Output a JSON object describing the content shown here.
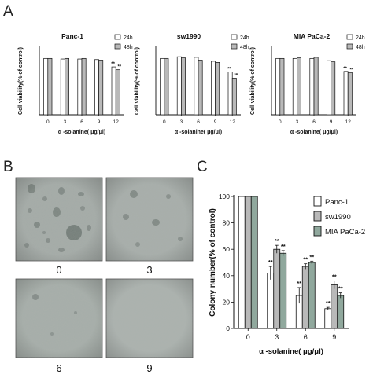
{
  "panel_letters": {
    "a": "A",
    "b": "B",
    "c": "C"
  },
  "colors": {
    "white_bar": "#ffffff",
    "gray_bar": "#b9b9b9",
    "teal_bar": "#90a89d",
    "stroke": "#111111",
    "photo_bg": "#a3aaa6"
  },
  "photos": {
    "labels": [
      "0",
      "3",
      "6",
      "9"
    ]
  },
  "chart_data": [
    {
      "type": "bar",
      "title": "Panc-1",
      "xlabel": "α -solanine( μg/μl)",
      "ylabel": "Cell viability(% of control)",
      "categories": [
        "0",
        "3",
        "6",
        "9",
        "12"
      ],
      "ylim": [
        0,
        120
      ],
      "yticks": [
        "0",
        "20",
        "40",
        "60",
        "80",
        "100",
        "120"
      ],
      "series": [
        {
          "name": "24h",
          "values": [
            100,
            99,
            99,
            98,
            85
          ],
          "color": "#ffffff"
        },
        {
          "name": "48h",
          "values": [
            100,
            100,
            100,
            97,
            80
          ],
          "color": "#b9b9b9"
        }
      ],
      "annotations": [
        {
          "category": "12",
          "text": "**",
          "series": 0
        },
        {
          "category": "12",
          "text": "**",
          "series": 1
        }
      ],
      "legend": "top-right"
    },
    {
      "type": "bar",
      "title": "sw1990",
      "xlabel": "α -solanine( μg/μl)",
      "ylabel": "Cell viability(% of control)",
      "categories": [
        "0",
        "3",
        "6",
        "9",
        "12"
      ],
      "ylim": [
        0,
        120
      ],
      "yticks": [
        "0",
        "20",
        "40",
        "60",
        "80",
        "100",
        "120"
      ],
      "series": [
        {
          "name": "24h",
          "values": [
            100,
            103,
            102,
            95,
            76
          ],
          "color": "#ffffff"
        },
        {
          "name": "48h",
          "values": [
            100,
            101,
            97,
            93,
            65
          ],
          "color": "#b9b9b9"
        }
      ],
      "annotations": [
        {
          "category": "12",
          "text": "**",
          "series": 0
        },
        {
          "category": "12",
          "text": "**",
          "series": 1
        }
      ],
      "legend": "top-right"
    },
    {
      "type": "bar",
      "title": "MIA PaCa-2",
      "xlabel": "α -solanine( μg/μl)",
      "ylabel": "Cell viability(% of control)",
      "categories": [
        "0",
        "3",
        "6",
        "9",
        "12"
      ],
      "ylim": [
        0,
        120
      ],
      "yticks": [
        "0",
        "20",
        "40",
        "60",
        "80",
        "100",
        "120"
      ],
      "series": [
        {
          "name": "24h",
          "values": [
            100,
            100,
            100,
            96,
            77
          ],
          "color": "#ffffff"
        },
        {
          "name": "48h",
          "values": [
            100,
            101,
            102,
            94,
            75
          ],
          "color": "#b9b9b9"
        }
      ],
      "annotations": [
        {
          "category": "12",
          "text": "**",
          "series": 0
        },
        {
          "category": "12",
          "text": "**",
          "series": 1
        }
      ],
      "legend": "top-right"
    },
    {
      "type": "bar",
      "title": "",
      "xlabel": "α -solanine( μg/μl)",
      "ylabel": "Colony number(% of control)",
      "categories": [
        "0",
        "3",
        "6",
        "9"
      ],
      "ylim": [
        0,
        100
      ],
      "yticks": [
        "0",
        "20",
        "40",
        "60",
        "80",
        "100"
      ],
      "series": [
        {
          "name": "Panc-1",
          "values": [
            100,
            42,
            25,
            15
          ],
          "color": "#ffffff"
        },
        {
          "name": "sw1990",
          "values": [
            100,
            60,
            47,
            33
          ],
          "color": "#b9b9b9"
        },
        {
          "name": "MIA PaCa-2",
          "values": [
            100,
            57,
            50,
            25
          ],
          "color": "#90a89d"
        }
      ],
      "errors": [
        [
          0,
          5,
          6,
          1
        ],
        [
          0,
          3,
          2,
          3
        ],
        [
          0,
          2,
          1,
          2
        ]
      ],
      "annotations": [
        {
          "category": "3",
          "series": 0,
          "text": "**"
        },
        {
          "category": "3",
          "series": 1,
          "text": "**"
        },
        {
          "category": "3",
          "series": 2,
          "text": "**"
        },
        {
          "category": "6",
          "series": 0,
          "text": "**"
        },
        {
          "category": "6",
          "series": 1,
          "text": "**"
        },
        {
          "category": "6",
          "series": 2,
          "text": "**"
        },
        {
          "category": "9",
          "series": 0,
          "text": "**"
        },
        {
          "category": "9",
          "series": 1,
          "text": "**"
        },
        {
          "category": "9",
          "series": 2,
          "text": "**"
        }
      ],
      "legend": "top-right"
    }
  ]
}
